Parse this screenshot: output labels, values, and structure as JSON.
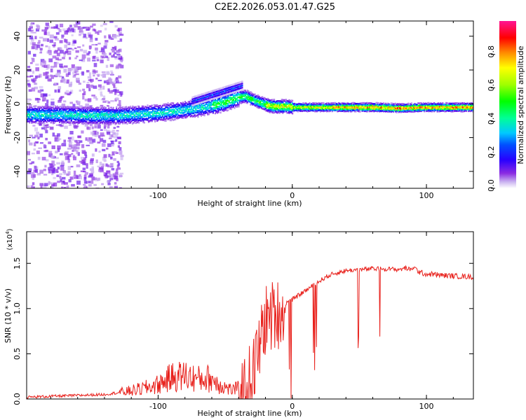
{
  "title": "C2E2.2026.053.01.47.G25",
  "colors": {
    "snr_line": "#e8211c",
    "frame": "#000000",
    "background": "#ffffff"
  },
  "chart_data": [
    {
      "type": "heatmap",
      "xlabel": "Height of straight line (km)",
      "ylabel": "Frequency (Hz)",
      "xlim": [
        -198,
        135
      ],
      "ylim": [
        -50,
        49
      ],
      "xticks": [
        -100,
        0,
        100
      ],
      "xtick_labels": [
        "-100",
        "0",
        "100"
      ],
      "yticks": [
        -40,
        -20,
        0,
        20,
        40
      ],
      "ytick_labels": [
        "-40",
        "-20",
        "0",
        "20",
        "40"
      ],
      "ridge_description": "frequency ridge of peak spectral amplitude versus height",
      "ridge_x": [
        -198,
        -175,
        -150,
        -130,
        -120,
        -110,
        -100,
        -90,
        -80,
        -70,
        -60,
        -50,
        -40,
        -35,
        -30,
        -25,
        -20,
        -15,
        -10,
        -5,
        0,
        10,
        20,
        40,
        60,
        80,
        100,
        135
      ],
      "ridge_freq": [
        -6,
        -6,
        -6.5,
        -6.5,
        -6,
        -5.5,
        -5,
        -4,
        -3,
        -2,
        -0.5,
        1.5,
        4.5,
        5,
        3,
        1.5,
        0,
        -1,
        -1,
        -1,
        -1.5,
        -1.5,
        -1.5,
        -1.5,
        -1.5,
        -2,
        -1.5,
        -1.5
      ],
      "colorbar": {
        "label": "Normalized spectral amplitude",
        "range": [
          0,
          1
        ],
        "ticks": [
          0,
          0.2,
          0.4,
          0.6,
          0.8
        ],
        "tick_labels": [
          "0.0",
          "0.2",
          "0.4",
          "0.6",
          "0.8"
        ]
      }
    },
    {
      "type": "line",
      "xlabel": "Height of straight line (km)",
      "ylabel": "SNR (10 * v/v)",
      "scale_note": "(x10",
      "scale_exp": "4",
      "scale_close": ")",
      "xlim": [
        -198,
        135
      ],
      "ylim": [
        0,
        1.85
      ],
      "xticks": [
        -100,
        0,
        100
      ],
      "xtick_labels": [
        "-100",
        "0",
        "100"
      ],
      "yticks": [
        0,
        0.5,
        1.0,
        1.5
      ],
      "ytick_labels": [
        "0.0",
        "0.5",
        "1.0",
        "1.5"
      ],
      "series": [
        {
          "name": "SNR",
          "x": [
            -198,
            -180,
            -160,
            -140,
            -130,
            -120,
            -110,
            -100,
            -95,
            -90,
            -85,
            -80,
            -75,
            -70,
            -65,
            -60,
            -55,
            -50,
            -45,
            -40,
            -35,
            -30,
            -28,
            -25,
            -22,
            -20,
            -15,
            -10,
            -5,
            0,
            5,
            10,
            15,
            20,
            25,
            30,
            35,
            40,
            50,
            60,
            70,
            80,
            85,
            88,
            90,
            95,
            100,
            105,
            110,
            120,
            135
          ],
          "y": [
            0.02,
            0.03,
            0.04,
            0.05,
            0.07,
            0.09,
            0.12,
            0.16,
            0.2,
            0.24,
            0.25,
            0.26,
            0.24,
            0.22,
            0.23,
            0.22,
            0.17,
            0.13,
            0.1,
            0.12,
            0.18,
            0.35,
            0.45,
            0.6,
            0.85,
            0.95,
            1.0,
            1.03,
            1.06,
            1.1,
            1.15,
            1.2,
            1.25,
            1.3,
            1.35,
            1.38,
            1.4,
            1.42,
            1.43,
            1.44,
            1.44,
            1.43,
            1.45,
            1.42,
            1.46,
            1.4,
            1.38,
            1.38,
            1.37,
            1.36,
            1.35
          ]
        }
      ]
    }
  ]
}
